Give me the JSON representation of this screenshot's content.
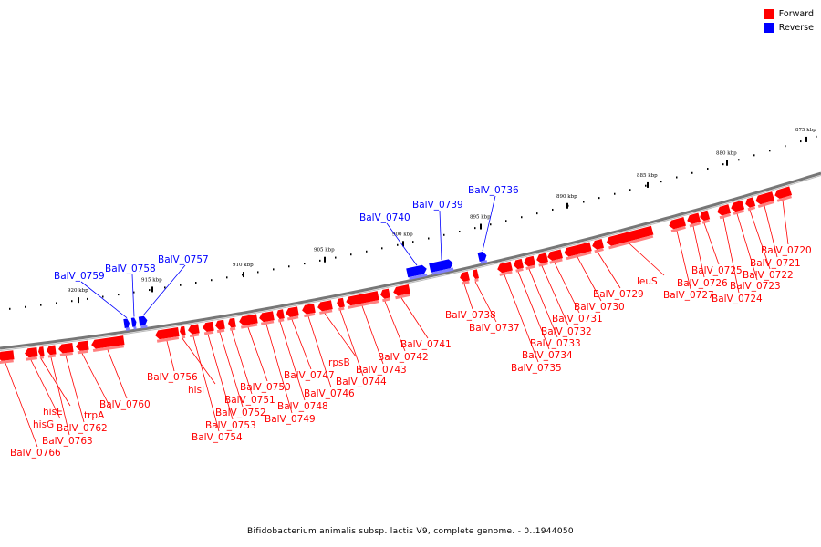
{
  "legend": [
    {
      "label": "Forward",
      "color": "#ff0000"
    },
    {
      "label": "Reverse",
      "color": "#0000ff"
    }
  ],
  "caption": "Bifidobacterium animalis subsp. lactis V9, complete genome. - 0..1944050",
  "colors": {
    "forward": "#ff0000",
    "forward_shadow": "#ff8080",
    "reverse": "#0000ff",
    "reverse_shadow": "#8080ff",
    "backbone": "#777777"
  },
  "ticks": [
    {
      "kbp": 875,
      "label": "875 kbp"
    },
    {
      "kbp": 880,
      "label": "880 kbp"
    },
    {
      "kbp": 885,
      "label": "885 kbp"
    },
    {
      "kbp": 890,
      "label": "890 kbp"
    },
    {
      "kbp": 895,
      "label": "895 kbp"
    },
    {
      "kbp": 900,
      "label": "900 kbp"
    },
    {
      "kbp": 905,
      "label": "905 kbp"
    },
    {
      "kbp": 910,
      "label": "910 kbp"
    },
    {
      "kbp": 915,
      "label": "915 kbp"
    },
    {
      "kbp": 920,
      "label": "920 kbp"
    }
  ],
  "genes": [
    {
      "name": "BalV_0720",
      "strand": "forward"
    },
    {
      "name": "BalV_0721",
      "strand": "forward"
    },
    {
      "name": "BalV_0722",
      "strand": "forward"
    },
    {
      "name": "BalV_0723",
      "strand": "forward"
    },
    {
      "name": "BalV_0724",
      "strand": "forward"
    },
    {
      "name": "BalV_0725",
      "strand": "forward"
    },
    {
      "name": "BalV_0726",
      "strand": "forward"
    },
    {
      "name": "BalV_0727",
      "strand": "forward"
    },
    {
      "name": "leuS",
      "strand": "forward"
    },
    {
      "name": "BalV_0729",
      "strand": "forward"
    },
    {
      "name": "BalV_0730",
      "strand": "forward"
    },
    {
      "name": "BalV_0731",
      "strand": "forward"
    },
    {
      "name": "BalV_0732",
      "strand": "forward"
    },
    {
      "name": "BalV_0733",
      "strand": "forward"
    },
    {
      "name": "BalV_0734",
      "strand": "forward"
    },
    {
      "name": "BalV_0735",
      "strand": "forward"
    },
    {
      "name": "BalV_0736",
      "strand": "reverse"
    },
    {
      "name": "BalV_0737",
      "strand": "forward"
    },
    {
      "name": "BalV_0738",
      "strand": "forward"
    },
    {
      "name": "BalV_0739",
      "strand": "reverse"
    },
    {
      "name": "BalV_0740",
      "strand": "reverse"
    },
    {
      "name": "BalV_0741",
      "strand": "forward"
    },
    {
      "name": "BalV_0742",
      "strand": "forward"
    },
    {
      "name": "BalV_0743",
      "strand": "forward"
    },
    {
      "name": "BalV_0744",
      "strand": "forward"
    },
    {
      "name": "rpsB",
      "strand": "forward"
    },
    {
      "name": "BalV_0746",
      "strand": "forward"
    },
    {
      "name": "BalV_0747",
      "strand": "forward"
    },
    {
      "name": "BalV_0748",
      "strand": "forward"
    },
    {
      "name": "BalV_0749",
      "strand": "forward"
    },
    {
      "name": "BalV_0750",
      "strand": "forward"
    },
    {
      "name": "BalV_0751",
      "strand": "forward"
    },
    {
      "name": "BalV_0752",
      "strand": "forward"
    },
    {
      "name": "BalV_0753",
      "strand": "forward"
    },
    {
      "name": "BalV_0754",
      "strand": "forward"
    },
    {
      "name": "hisI",
      "strand": "forward"
    },
    {
      "name": "BalV_0756",
      "strand": "forward"
    },
    {
      "name": "BalV_0757",
      "strand": "reverse"
    },
    {
      "name": "BalV_0758",
      "strand": "reverse"
    },
    {
      "name": "BalV_0759",
      "strand": "reverse"
    },
    {
      "name": "BalV_0760",
      "strand": "forward"
    },
    {
      "name": "trpA",
      "strand": "forward"
    },
    {
      "name": "BalV_0762",
      "strand": "forward"
    },
    {
      "name": "BalV_0763",
      "strand": "forward"
    },
    {
      "name": "hisE",
      "strand": "forward"
    },
    {
      "name": "hisG",
      "strand": "forward"
    },
    {
      "name": "BalV_0766",
      "strand": "forward"
    }
  ]
}
